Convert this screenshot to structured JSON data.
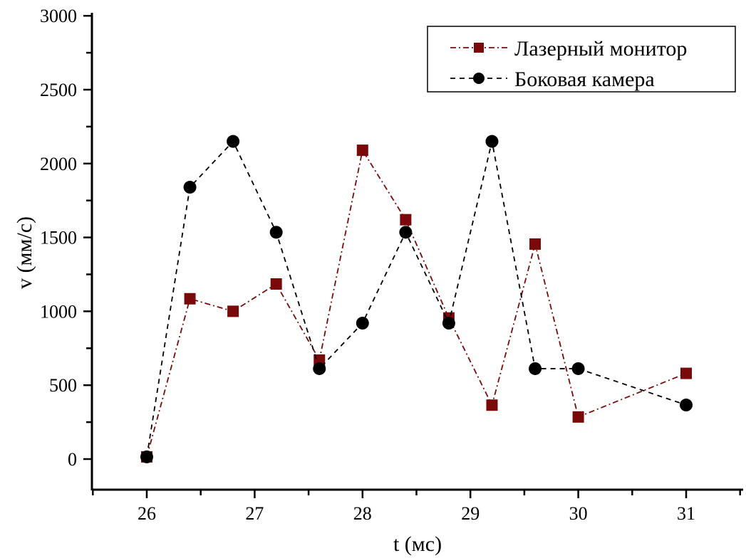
{
  "chart_data": {
    "type": "line",
    "title": "",
    "xlabel": "t (мс)",
    "ylabel": "v (мм/с)",
    "xlim": [
      25.5,
      31.5
    ],
    "ylim": [
      -200,
      3000
    ],
    "x_ticks": [
      "26",
      "27",
      "28",
      "29",
      "30",
      "31"
    ],
    "y_ticks": [
      "0",
      "500",
      "1000",
      "1500",
      "2000",
      "2500",
      "3000"
    ],
    "grid": false,
    "legend_position": "top-right",
    "series": [
      {
        "name": "Лазерный монитор",
        "color": "#7a0a0a",
        "marker": "square",
        "line_style": "dash-dot",
        "x": [
          26,
          26.4,
          26.8,
          27.2,
          27.6,
          28,
          28.4,
          28.8,
          29.2,
          29.6,
          30,
          31
        ],
        "y": [
          15,
          1085,
          1000,
          1185,
          670,
          2090,
          1620,
          955,
          365,
          1455,
          285,
          580
        ]
      },
      {
        "name": "Боковая камера",
        "color": "#000000",
        "marker": "circle",
        "line_style": "dashed",
        "x": [
          26,
          26.4,
          26.8,
          27.2,
          27.6,
          28,
          28.4,
          28.8,
          29.2,
          29.6,
          30,
          31
        ],
        "y": [
          15,
          1840,
          2150,
          1535,
          612,
          920,
          1535,
          920,
          2150,
          612,
          612,
          366
        ]
      }
    ]
  }
}
